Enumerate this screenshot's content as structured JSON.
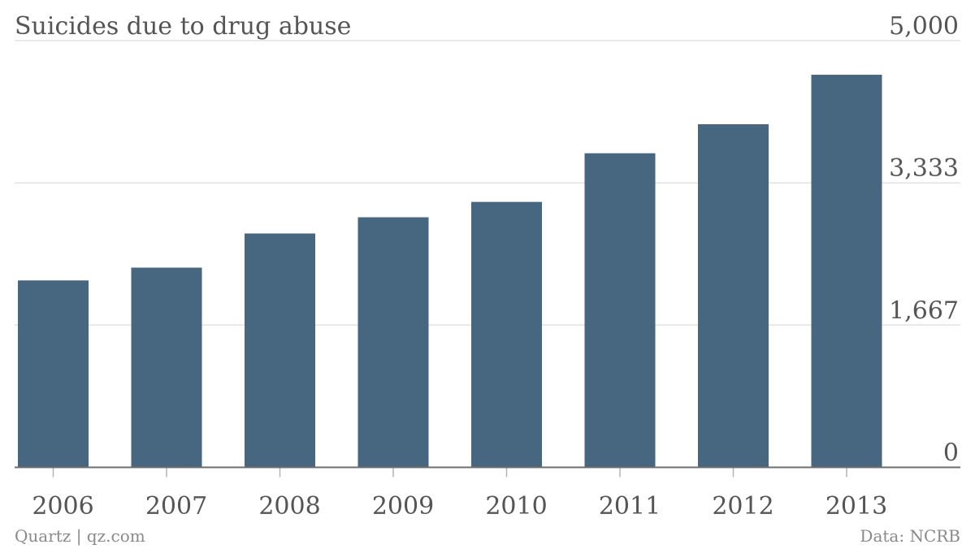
{
  "title": "Suicides due to drug abuse",
  "footer": {
    "source_left": "Quartz | qz.com",
    "source_right": "Data: NCRB"
  },
  "colors": {
    "bar": "#47667f",
    "grid": "#e2e2e2",
    "text": "#555555"
  },
  "chart_data": {
    "type": "bar",
    "title": "Suicides due to drug abuse",
    "xlabel": "",
    "ylabel": "",
    "categories": [
      "2006",
      "2007",
      "2008",
      "2009",
      "2010",
      "2011",
      "2012",
      "2013"
    ],
    "values": [
      2190,
      2340,
      2740,
      2930,
      3110,
      3680,
      4020,
      4600
    ],
    "ylim": [
      0,
      5000
    ],
    "yticks": [
      "0",
      "1,667",
      "3,333",
      "5,000"
    ],
    "ytick_values": [
      0,
      1667,
      3333,
      5000
    ],
    "y_axis_side": "right",
    "grid": true,
    "legend": "none"
  }
}
